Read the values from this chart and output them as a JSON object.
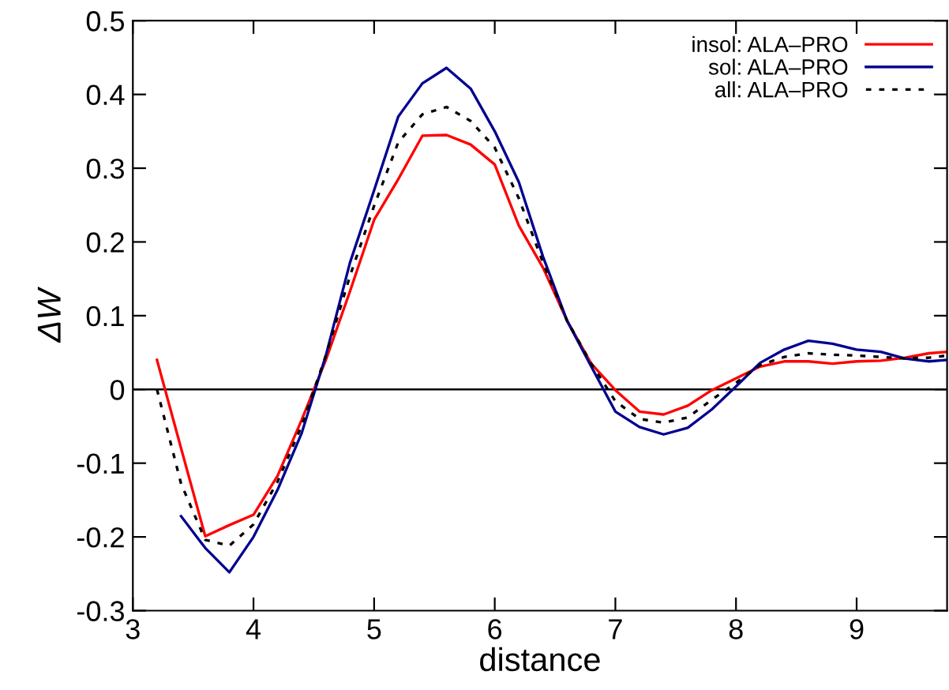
{
  "chart_data": {
    "type": "line",
    "xlabel": "distance",
    "ylabel": "ΔW",
    "xlim": [
      3,
      9.75
    ],
    "ylim": [
      -0.3,
      0.5
    ],
    "xticks": [
      3,
      4,
      5,
      6,
      7,
      8,
      9
    ],
    "yticks": [
      -0.3,
      -0.2,
      -0.1,
      0,
      0.1,
      0.2,
      0.3,
      0.4,
      0.5
    ],
    "grid": false,
    "legend": "top right",
    "ref_lines": [
      {
        "axis": "y",
        "value": 0,
        "color": "#000000"
      }
    ],
    "series": [
      {
        "name": "insol: ALA–PRO",
        "color": "#ff0000",
        "line_style": "solid",
        "x": [
          3.2,
          3.4,
          3.6,
          3.8,
          4.0,
          4.2,
          4.4,
          4.6,
          4.8,
          5.0,
          5.2,
          5.4,
          5.6,
          5.8,
          6.0,
          6.2,
          6.4,
          6.6,
          6.8,
          7.0,
          7.2,
          7.4,
          7.6,
          7.8,
          8.0,
          8.2,
          8.4,
          8.6,
          8.8,
          9.0,
          9.2,
          9.4,
          9.6,
          9.75
        ],
        "values": [
          0.04,
          -0.08,
          -0.199,
          -0.184,
          -0.17,
          -0.117,
          -0.041,
          0.04,
          0.133,
          0.23,
          0.285,
          0.344,
          0.345,
          0.332,
          0.305,
          0.222,
          0.165,
          0.093,
          0.035,
          -0.001,
          -0.03,
          -0.034,
          -0.022,
          -0.001,
          0.015,
          0.031,
          0.038,
          0.038,
          0.035,
          0.038,
          0.039,
          0.043,
          0.049,
          0.051
        ]
      },
      {
        "name": "sol: ALA–PRO",
        "color": "#000090",
        "line_style": "solid",
        "x": [
          3.4,
          3.6,
          3.8,
          4.0,
          4.2,
          4.4,
          4.6,
          4.8,
          5.0,
          5.2,
          5.4,
          5.6,
          5.8,
          6.0,
          6.2,
          6.4,
          6.6,
          6.8,
          7.0,
          7.2,
          7.4,
          7.6,
          7.8,
          8.0,
          8.2,
          8.4,
          8.6,
          8.8,
          9.0,
          9.2,
          9.4,
          9.6,
          9.75
        ],
        "values": [
          -0.172,
          -0.215,
          -0.248,
          -0.2,
          -0.136,
          -0.059,
          0.046,
          0.172,
          0.27,
          0.37,
          0.415,
          0.436,
          0.408,
          0.35,
          0.281,
          0.18,
          0.093,
          0.031,
          -0.03,
          -0.051,
          -0.061,
          -0.052,
          -0.027,
          0.004,
          0.036,
          0.054,
          0.066,
          0.062,
          0.054,
          0.051,
          0.042,
          0.038,
          0.04
        ]
      },
      {
        "name": "all: ALA–PRO",
        "color": "#000000",
        "line_style": "dotted",
        "x": [
          3.2,
          3.4,
          3.6,
          3.8,
          4.0,
          4.2,
          4.4,
          4.6,
          4.8,
          5.0,
          5.2,
          5.4,
          5.6,
          5.8,
          6.0,
          6.2,
          6.4,
          6.6,
          6.8,
          7.0,
          7.2,
          7.4,
          7.6,
          7.8,
          8.0,
          8.2,
          8.4,
          8.6,
          8.8,
          9.0,
          9.2,
          9.4,
          9.6,
          9.75
        ],
        "values": [
          0,
          -0.128,
          -0.204,
          -0.212,
          -0.183,
          -0.125,
          -0.049,
          0.046,
          0.154,
          0.249,
          0.335,
          0.373,
          0.383,
          0.364,
          0.328,
          0.259,
          0.172,
          0.093,
          0.035,
          -0.016,
          -0.04,
          -0.045,
          -0.038,
          -0.014,
          0.009,
          0.033,
          0.044,
          0.049,
          0.047,
          0.046,
          0.044,
          0.042,
          0.043,
          0.046
        ]
      }
    ]
  }
}
